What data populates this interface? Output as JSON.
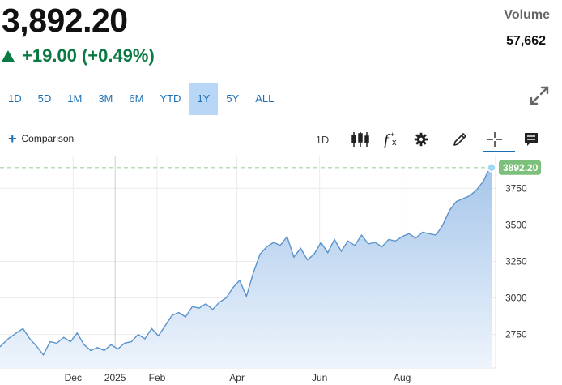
{
  "quote": {
    "price": "3,892.20",
    "change": "+19.00",
    "change_pct": "(+0.49%)",
    "volume_label": "Volume",
    "volume_value": "57,662",
    "up_color": "#0a7a42"
  },
  "ranges": [
    {
      "label": "1D",
      "active": false
    },
    {
      "label": "5D",
      "active": false
    },
    {
      "label": "1M",
      "active": false
    },
    {
      "label": "3M",
      "active": false
    },
    {
      "label": "6M",
      "active": false
    },
    {
      "label": "YTD",
      "active": false
    },
    {
      "label": "1Y",
      "active": true
    },
    {
      "label": "5Y",
      "active": false
    },
    {
      "label": "ALL",
      "active": false
    }
  ],
  "toolbar": {
    "comparison_label": "Comparison",
    "interval_label": "1D",
    "icons": [
      "plus-icon",
      "candlestick-icon",
      "function-icon",
      "gear-icon",
      "pencil-icon",
      "crosshair-icon",
      "comment-icon",
      "expand-icon"
    ]
  },
  "chart_data": {
    "type": "area",
    "x_labels": [
      "Dec",
      "2025",
      "Feb",
      "Apr",
      "Jun",
      "Aug"
    ],
    "y_ticks": [
      2750,
      3000,
      3250,
      3500,
      3750
    ],
    "ylim": [
      2520,
      3930
    ],
    "last_value_label": "3892.20",
    "last_value": 3892.2,
    "colors": {
      "line": "#5b93cc",
      "fill_top": "#a6c6ea",
      "fill_bottom": "#eef4fc",
      "badge": "#7cc07c",
      "dashed": "#9fd29f"
    },
    "series": [
      {
        "x": [
          "2024-10-08",
          "2024-10-14",
          "2024-10-20",
          "2024-10-25",
          "2024-10-30",
          "2024-11-04",
          "2024-11-09",
          "2024-11-14",
          "2024-11-19",
          "2024-11-24",
          "2024-11-29",
          "2024-12-04",
          "2024-12-09",
          "2024-12-14",
          "2024-12-19",
          "2024-12-24",
          "2024-12-29",
          "2025-01-03",
          "2025-01-08",
          "2025-01-13",
          "2025-01-18",
          "2025-01-23",
          "2025-01-28",
          "2025-02-02",
          "2025-02-07",
          "2025-02-12",
          "2025-02-17",
          "2025-02-22",
          "2025-02-27",
          "2025-03-04",
          "2025-03-09",
          "2025-03-14",
          "2025-03-19",
          "2025-03-24",
          "2025-03-29",
          "2025-04-03",
          "2025-04-08",
          "2025-04-13",
          "2025-04-18",
          "2025-04-23",
          "2025-04-28",
          "2025-05-03",
          "2025-05-08",
          "2025-05-13",
          "2025-05-18",
          "2025-05-23",
          "2025-05-28",
          "2025-06-02",
          "2025-06-07",
          "2025-06-12",
          "2025-06-17",
          "2025-06-22",
          "2025-06-27",
          "2025-07-02",
          "2025-07-07",
          "2025-07-12",
          "2025-07-17",
          "2025-07-22",
          "2025-07-27",
          "2025-08-01",
          "2025-08-06",
          "2025-08-11",
          "2025-08-16",
          "2025-08-21",
          "2025-08-26",
          "2025-08-31",
          "2025-09-05",
          "2025-09-10",
          "2025-09-15",
          "2025-09-20",
          "2025-09-25",
          "2025-09-30",
          "2025-10-03",
          "2025-10-06"
        ],
        "values": [
          2665,
          2720,
          2760,
          2790,
          2720,
          2670,
          2610,
          2700,
          2690,
          2730,
          2700,
          2760,
          2680,
          2640,
          2660,
          2640,
          2680,
          2650,
          2690,
          2700,
          2750,
          2720,
          2790,
          2740,
          2810,
          2880,
          2900,
          2870,
          2940,
          2930,
          2960,
          2920,
          2970,
          3000,
          3070,
          3120,
          3010,
          3170,
          3300,
          3350,
          3380,
          3360,
          3420,
          3280,
          3340,
          3260,
          3300,
          3380,
          3310,
          3400,
          3320,
          3390,
          3360,
          3430,
          3370,
          3380,
          3350,
          3400,
          3390,
          3420,
          3440,
          3410,
          3450,
          3440,
          3430,
          3500,
          3600,
          3660,
          3680,
          3700,
          3740,
          3800,
          3860,
          3892.2
        ]
      }
    ]
  }
}
